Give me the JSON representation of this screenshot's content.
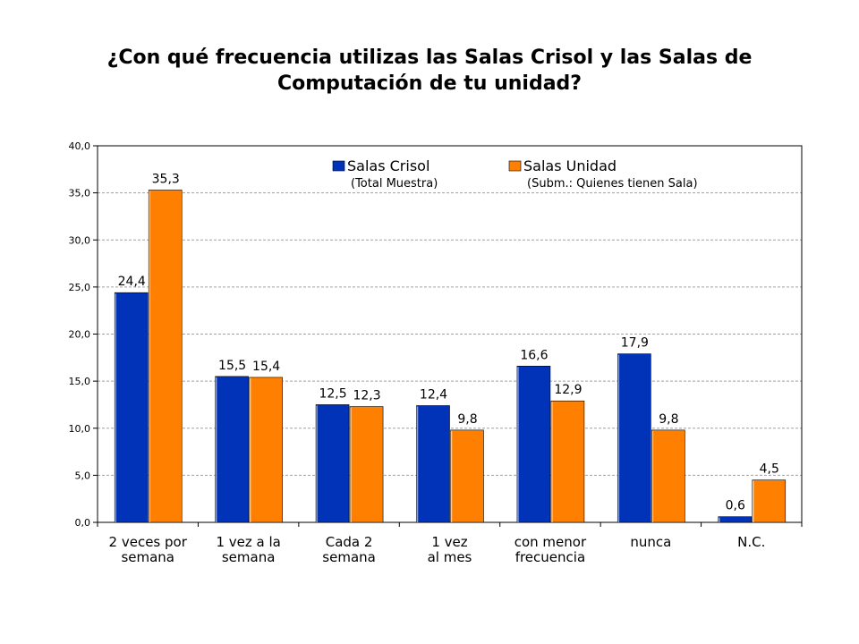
{
  "chart_data": {
    "type": "bar",
    "title_lines": [
      "¿Con qué frecuencia utilizas las Salas Crisol y las Salas de",
      "Computación de tu unidad?"
    ],
    "categories": [
      [
        "2 veces por",
        "semana"
      ],
      [
        "1 vez a la",
        "semana"
      ],
      [
        "Cada 2",
        "semana"
      ],
      [
        "1 vez",
        "al mes"
      ],
      [
        "con menor",
        "frecuencia"
      ],
      [
        "nunca"
      ],
      [
        "N.C."
      ]
    ],
    "series": [
      {
        "name": "Salas Crisol",
        "note": "(Total Muestra)",
        "color": "#0033b8",
        "values": [
          24.4,
          15.5,
          12.5,
          12.4,
          16.6,
          17.9,
          0.6
        ],
        "labels": [
          "24,4",
          "15,5",
          "12,5",
          "12,4",
          "16,6",
          "17,9",
          "0,6"
        ]
      },
      {
        "name": "Salas Unidad",
        "note": "(Subm.: Quienes tienen Sala)",
        "color": "#ff8000",
        "values": [
          35.3,
          15.4,
          12.3,
          9.8,
          12.9,
          9.8,
          4.5
        ],
        "labels": [
          "35,3",
          "15,4",
          "12,3",
          "9,8",
          "12,9",
          "9,8",
          "4,5"
        ]
      }
    ],
    "ylim": [
      0,
      40
    ],
    "yticks": [
      0,
      5,
      10,
      15,
      20,
      25,
      30,
      35,
      40
    ],
    "ytick_labels": [
      "0,0",
      "5,0",
      "10,0",
      "15,0",
      "20,0",
      "25,0",
      "30,0",
      "35,0",
      "40,0"
    ],
    "grid": true,
    "legend_position": "top"
  }
}
